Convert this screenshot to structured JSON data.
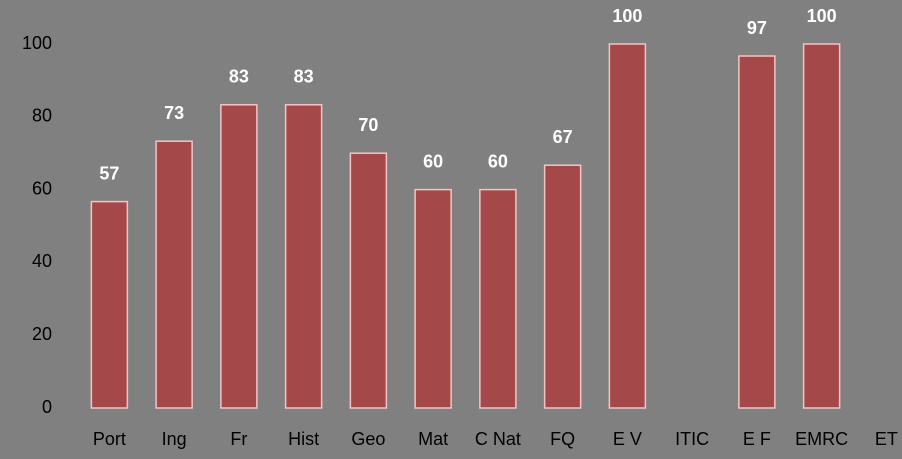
{
  "chart_data": {
    "type": "bar",
    "categories": [
      "Port",
      "Ing",
      "Fr",
      "Hist",
      "Geo",
      "Mat",
      "C Nat",
      "FQ",
      "E V",
      "ITIC",
      "E F",
      "EMRC",
      "ET"
    ],
    "values": [
      56.7,
      73.3,
      83.3,
      83.3,
      70,
      60,
      60,
      66.7,
      100,
      null,
      96.7,
      100,
      null
    ],
    "value_labels": [
      "57",
      "73",
      "83",
      "83",
      "70",
      "60",
      "60",
      "67",
      "100",
      null,
      "97",
      "100",
      null
    ],
    "color": "#a5484a",
    "ylim": [
      0,
      100
    ],
    "yticks": [
      0,
      20,
      40,
      60,
      80,
      100
    ],
    "grid": false
  }
}
